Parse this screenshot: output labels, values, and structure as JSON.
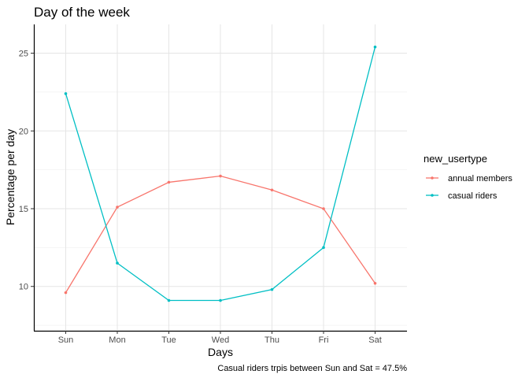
{
  "chart_data": {
    "type": "line",
    "title": "Day of the week",
    "xlabel": "Days",
    "ylabel": "Percentage per day",
    "caption": "Casual riders trpis between Sun and Sat = 47.5%",
    "categories": [
      "Sun",
      "Mon",
      "Tue",
      "Wed",
      "Thu",
      "Fri",
      "Sat"
    ],
    "yticks": [
      10,
      15,
      20,
      25
    ],
    "ylim": [
      7.15,
      26.85
    ],
    "grid": true,
    "legend": {
      "title": "new_usertype",
      "placement": "right"
    },
    "series": [
      {
        "name": "annual members",
        "color": "#F8766D",
        "values": [
          9.6,
          15.1,
          16.7,
          17.1,
          16.2,
          15.0,
          10.2
        ]
      },
      {
        "name": "casual riders",
        "color": "#00BFC4",
        "values": [
          22.4,
          11.5,
          9.1,
          9.1,
          9.8,
          12.5,
          25.4
        ]
      }
    ]
  }
}
